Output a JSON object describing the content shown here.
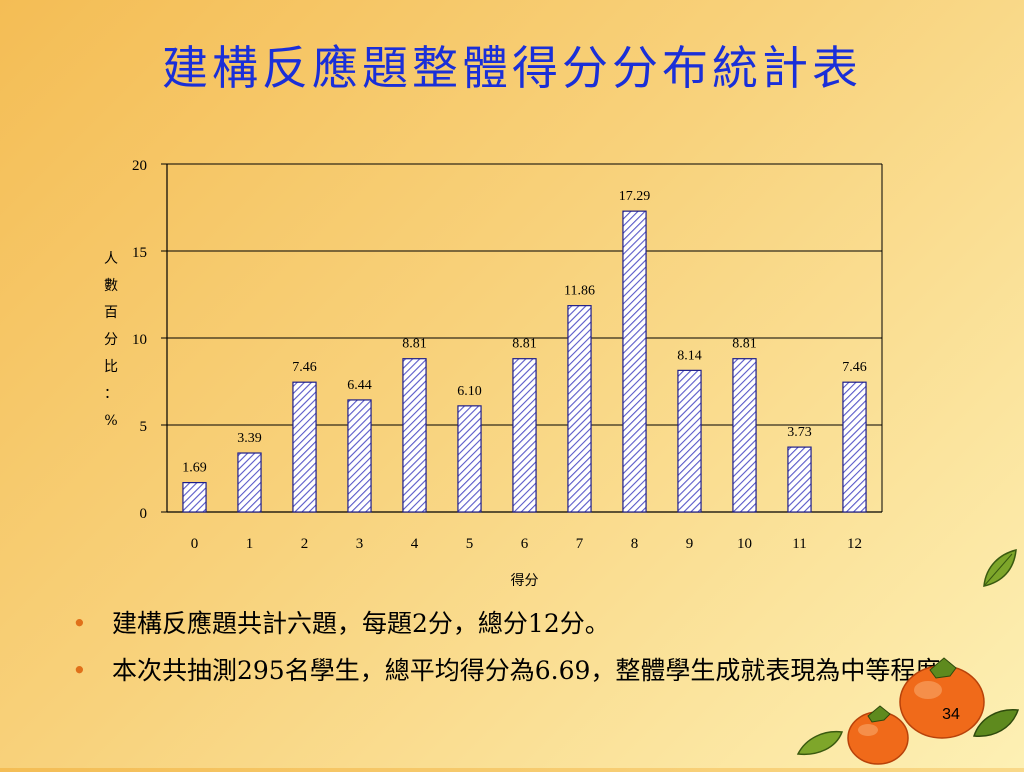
{
  "slide": {
    "title": "建構反應題整體得分分布統計表",
    "page_number": "34"
  },
  "bullets": [
    "建構反應題共計六題，每題2分，總分12分。",
    "本次共抽測295名學生，總平均得分為6.69，整體學生成就表現為中等程度。"
  ],
  "chart_data": {
    "type": "bar",
    "categories": [
      "0",
      "1",
      "2",
      "3",
      "4",
      "5",
      "6",
      "7",
      "8",
      "9",
      "10",
      "11",
      "12"
    ],
    "values": [
      1.69,
      3.39,
      7.46,
      6.44,
      8.81,
      6.1,
      8.81,
      11.86,
      17.29,
      8.14,
      8.81,
      3.73,
      7.46
    ],
    "data_labels": [
      "1.69",
      "3.39",
      "7.46",
      "6.44",
      "8.81",
      "6.10",
      "8.81",
      "11.86",
      "17.29",
      "8.14",
      "8.81",
      "3.73",
      "7.46"
    ],
    "xlabel": "得分",
    "ylabel": "人數百分比：%",
    "ylabel_chars": [
      "人",
      "數",
      "百",
      "分",
      "比",
      "：",
      "%"
    ],
    "ylim": [
      0,
      20
    ],
    "yticks": [
      "0",
      "5",
      "10",
      "15",
      "20"
    ],
    "grid": true,
    "bar_fill": "hatched",
    "colors": {
      "bar_stroke": "#1e1e8a",
      "hatch": "#5858c8",
      "bar_bg": "#ffffff",
      "title": "#1a2fd8",
      "bullet": "#e0701a"
    }
  }
}
